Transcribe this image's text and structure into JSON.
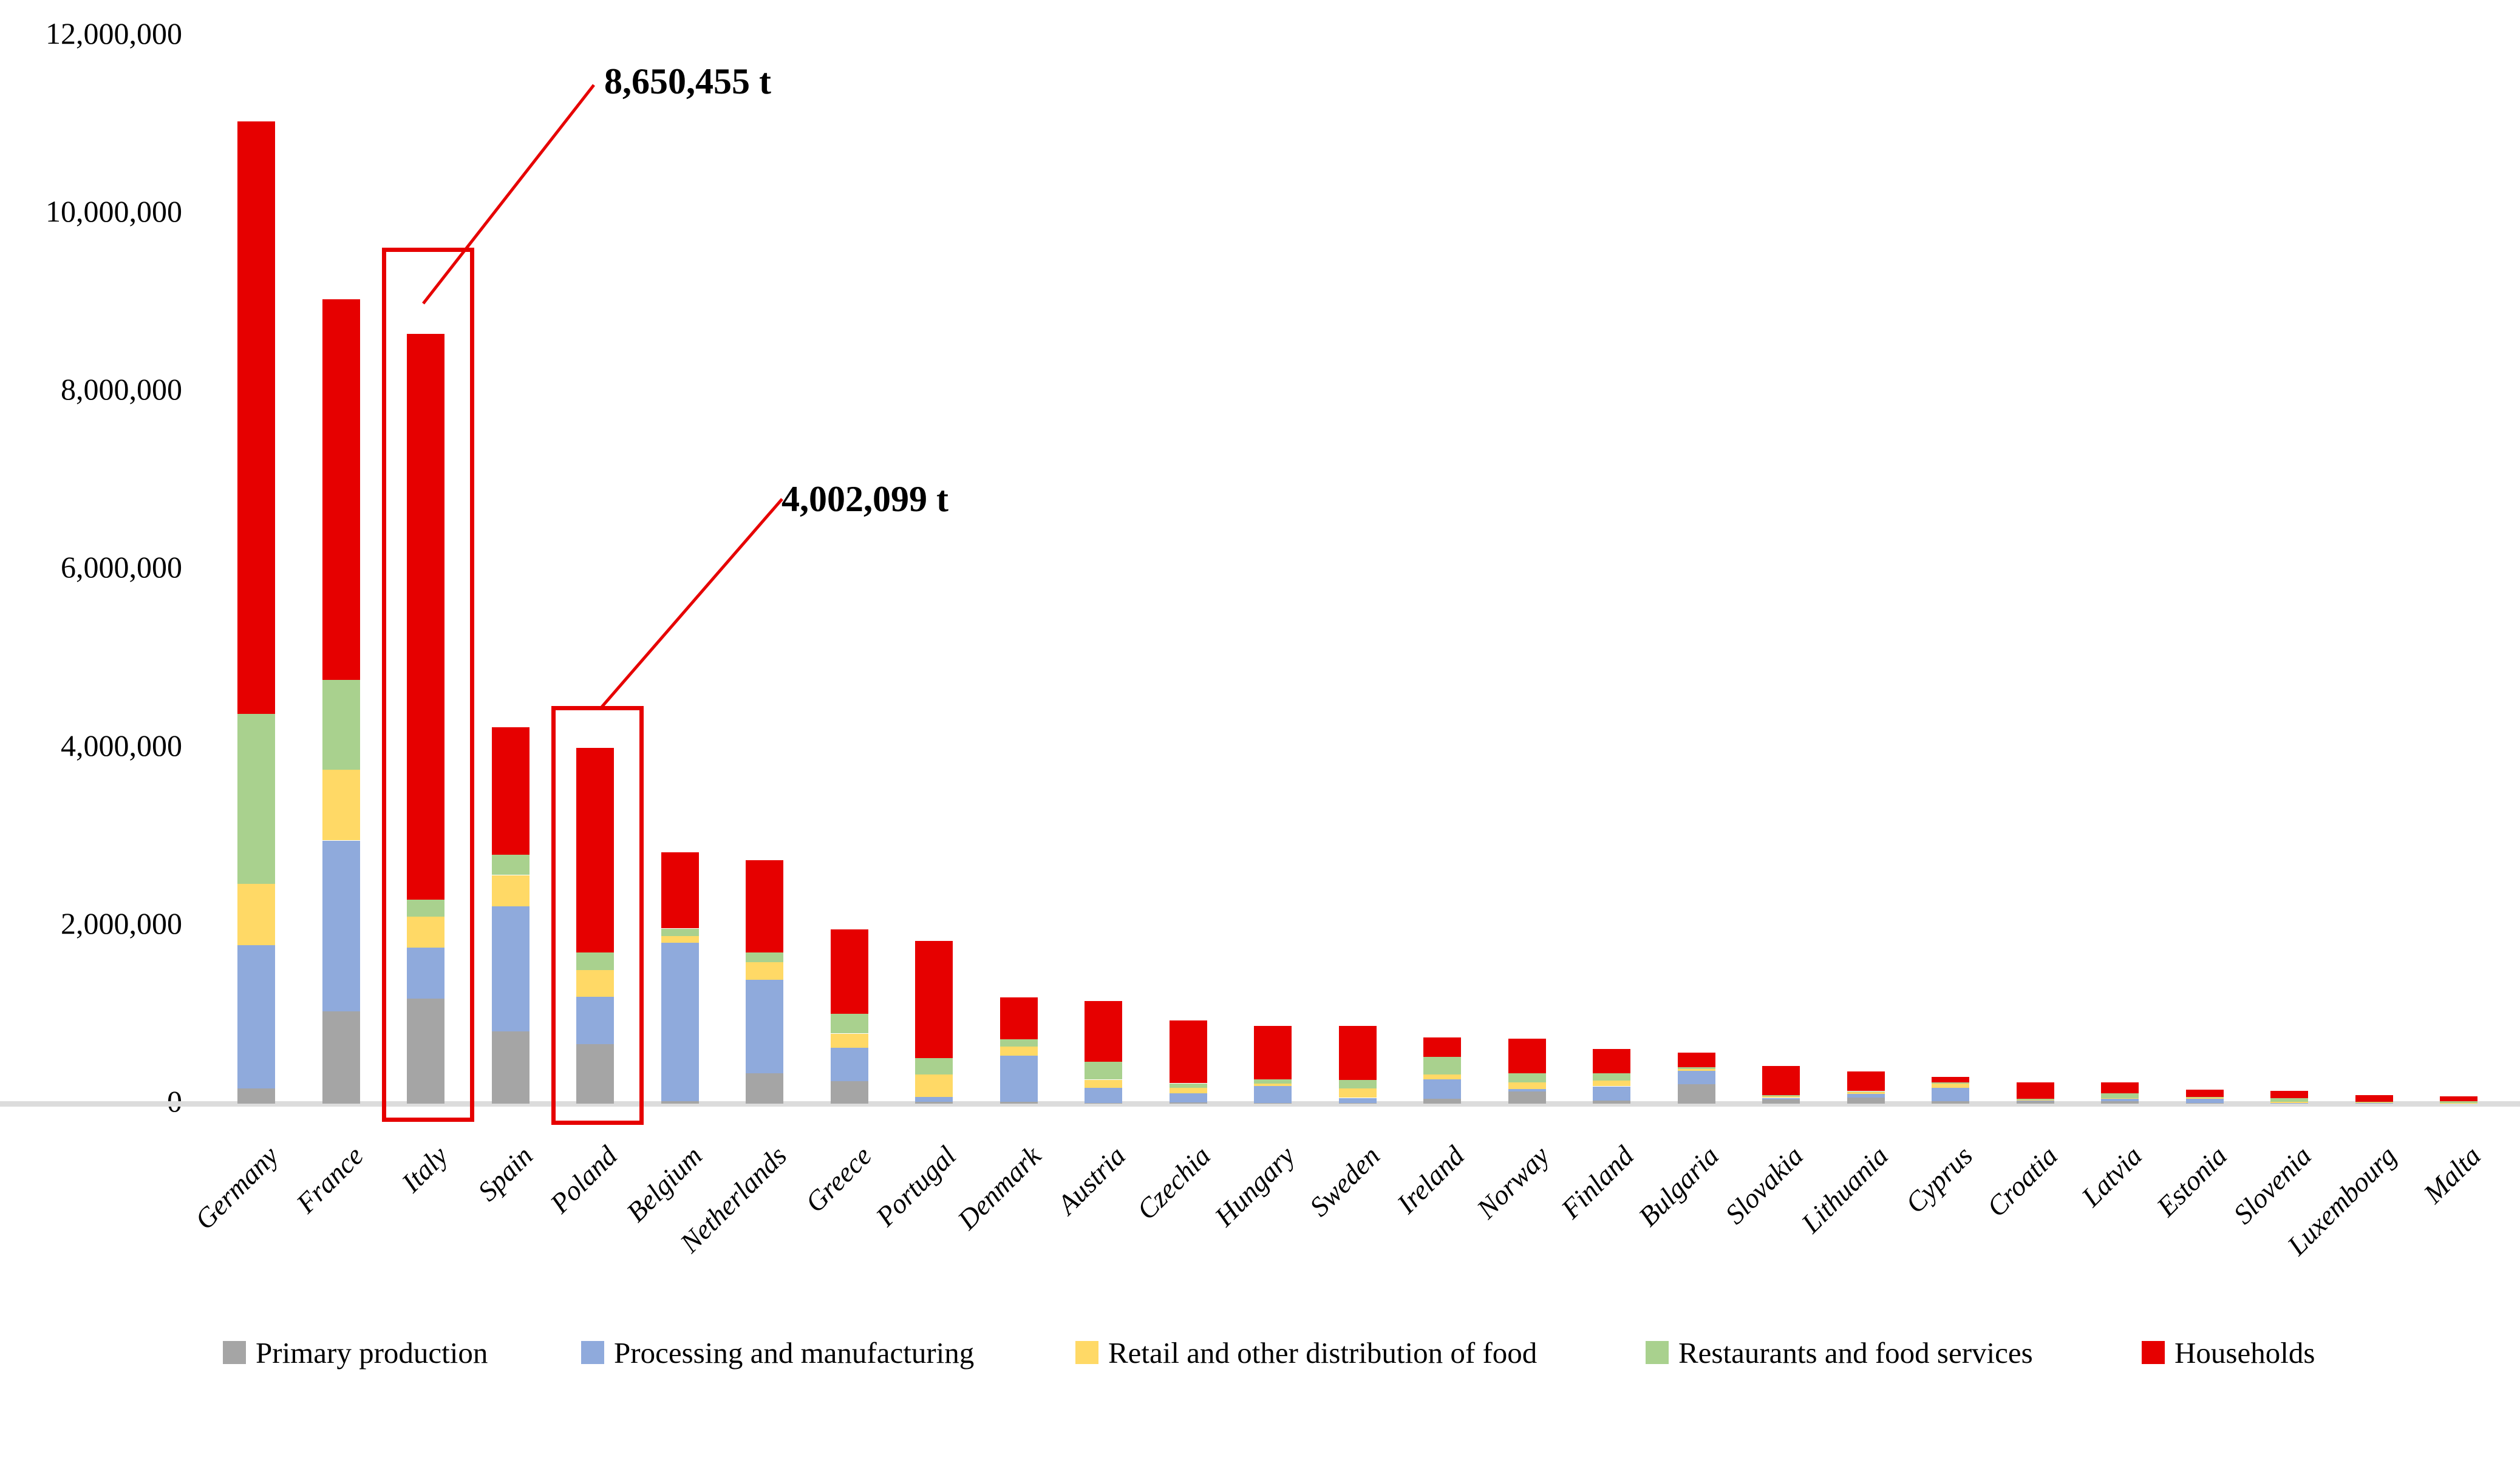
{
  "chart_data": {
    "type": "bar",
    "stacked": true,
    "title": "",
    "unit": "t",
    "grid": false,
    "legend_position": "bottom",
    "categories": [
      "Germany",
      "France",
      "Italy",
      "Spain",
      "Poland",
      "Belgium",
      "Netherlands",
      "Greece",
      "Portugal",
      "Denmark",
      "Austria",
      "Czechia",
      "Hungary",
      "Sweden",
      "Ireland",
      "Norway",
      "Finland",
      "Bulgaria",
      "Slovakia",
      "Lithuania",
      "Cyprus",
      "Croatia",
      "Latvia",
      "Estonia",
      "Slovenia",
      "Luxembourg",
      "Malta"
    ],
    "series": [
      {
        "name": "Primary production",
        "color": "#a5a5a5",
        "values": [
          170000,
          1040000,
          1180000,
          810000,
          670000,
          25000,
          340000,
          250000,
          20000,
          20000,
          10000,
          15000,
          5000,
          10000,
          55000,
          135000,
          35000,
          215000,
          50000,
          65000,
          25000,
          28000,
          25000,
          5000,
          3000,
          2000,
          1000
        ]
      },
      {
        "name": "Processing and manufacturing",
        "color": "#8faadc",
        "values": [
          1610000,
          1920000,
          570000,
          1410000,
          530000,
          1780000,
          1050000,
          380000,
          55000,
          520000,
          170000,
          100000,
          190000,
          55000,
          220000,
          30000,
          160000,
          150000,
          15000,
          45000,
          150000,
          8000,
          30000,
          48000,
          3000,
          4000,
          1000
        ]
      },
      {
        "name": "Retail and other distribution of food",
        "color": "#ffd966",
        "values": [
          690000,
          790000,
          350000,
          350000,
          300000,
          80000,
          200000,
          160000,
          255000,
          100000,
          90000,
          65000,
          32000,
          105000,
          55000,
          75000,
          65000,
          25000,
          18000,
          23000,
          48000,
          8000,
          6000,
          17000,
          13000,
          5000,
          2000
        ]
      },
      {
        "name": "Restaurants and food services",
        "color": "#a9d18e",
        "values": [
          1910000,
          1010000,
          190000,
          230000,
          200000,
          85000,
          110000,
          220000,
          185000,
          80000,
          200000,
          50000,
          45000,
          95000,
          195000,
          100000,
          80000,
          20000,
          15000,
          10000,
          15000,
          11000,
          52000,
          3000,
          42000,
          8000,
          22000
        ]
      },
      {
        "name": "Households",
        "color": "#e60000",
        "values": [
          6660000,
          4280000,
          6360455,
          1430000,
          2302099,
          855000,
          1040000,
          950000,
          1315000,
          470000,
          680000,
          700000,
          600000,
          610000,
          215000,
          390000,
          270000,
          165000,
          330000,
          215000,
          60000,
          185000,
          122000,
          82000,
          79000,
          74000,
          56000
        ]
      }
    ],
    "y_axis": {
      "min": 0,
      "max": 12000000,
      "tick_interval": 2000000,
      "tick_values": [
        12000000,
        10000000,
        8000000,
        6000000,
        4000000,
        2000000,
        0
      ],
      "tick_labels": [
        "12,000,000",
        "10,000,000",
        "8,000,000",
        "6,000,000",
        "4,000,000",
        "2,000,000",
        "0"
      ]
    },
    "x_axis": {
      "label_rotation_deg": 45
    },
    "annotations": [
      {
        "text": "8,650,455 t",
        "country": "Italy",
        "total": 8650455
      },
      {
        "text": "4,002,099 t",
        "country": "Poland",
        "total": 4002099
      }
    ],
    "highlighted_countries": [
      "Italy",
      "Poland"
    ],
    "accent_red": "#e60000"
  }
}
